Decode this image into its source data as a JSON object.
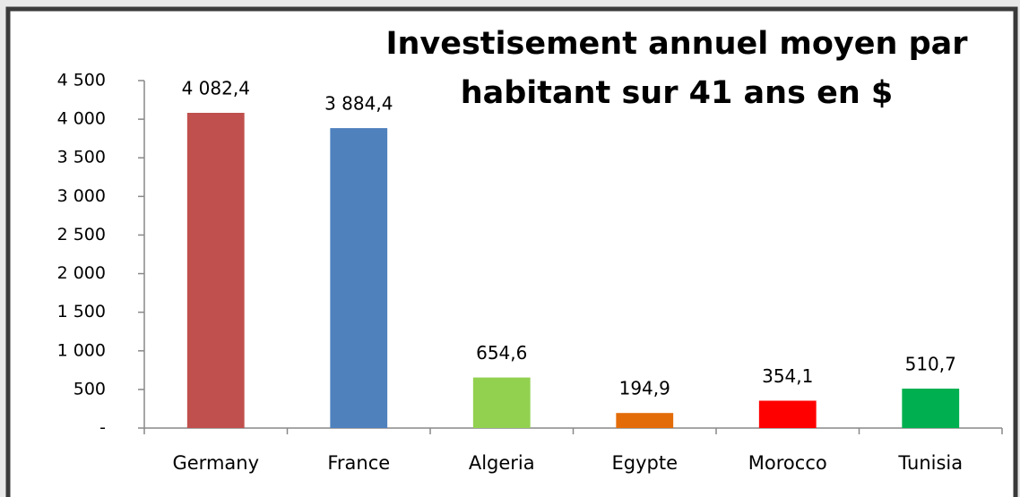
{
  "chart_data": {
    "type": "bar",
    "title": [
      "Investisement annuel moyen par",
      "habitant sur 41 ans en $"
    ],
    "categories": [
      "Germany",
      "France",
      "Algeria",
      "Egypte",
      "Morocco",
      "Tunisia"
    ],
    "values": [
      4082.4,
      3884.4,
      654.6,
      194.9,
      354.1,
      510.7
    ],
    "value_labels": [
      "4 082,4",
      "3 884,4",
      "654,6",
      "194,9",
      "354,1",
      "510,7"
    ],
    "colors": [
      "#c0504d",
      "#4f81bd",
      "#92d050",
      "#e36c09",
      "#ff0000",
      "#00b050"
    ],
    "ylim": [
      0,
      4500
    ],
    "yticks": [
      {
        "value": 0,
        "label": "-"
      },
      500,
      {
        "value": 1000,
        "label": "1 000"
      },
      {
        "value": 1500,
        "label": "1 500"
      },
      {
        "value": 2000,
        "label": "2 000"
      },
      {
        "value": 2500,
        "label": "2 500"
      },
      {
        "value": 3000,
        "label": "3 000"
      },
      {
        "value": 3500,
        "label": "3 500"
      },
      {
        "value": 4000,
        "label": "4 000"
      },
      {
        "value": 4500,
        "label": "4 500"
      }
    ],
    "grid": false
  }
}
